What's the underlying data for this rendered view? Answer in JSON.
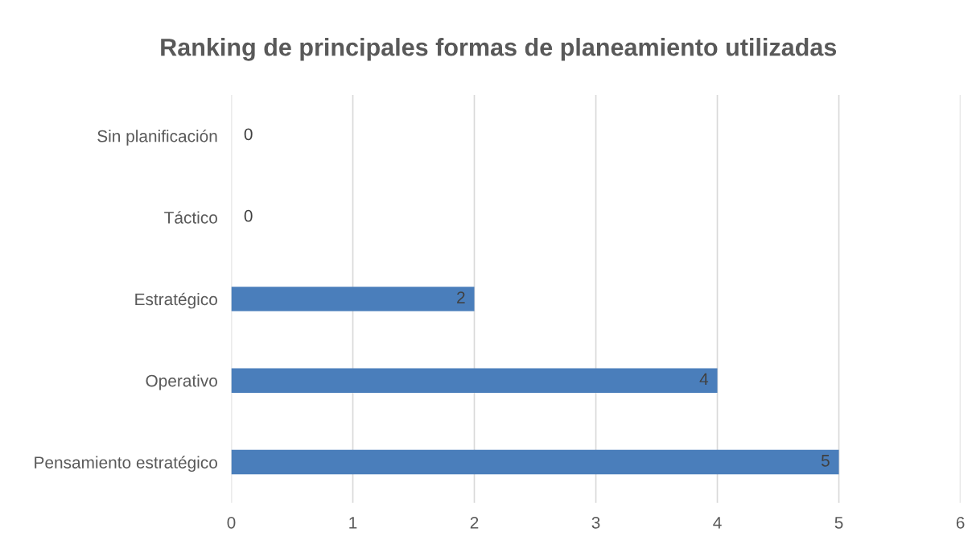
{
  "chart_data": {
    "type": "bar",
    "orientation": "horizontal",
    "title": "Ranking de principales formas de planeamiento utilizadas",
    "categories": [
      "Sin planificación",
      "Táctico",
      "Estratégico",
      "Operativo",
      "Pensamiento estratégico"
    ],
    "values": [
      0,
      0,
      2,
      4,
      5
    ],
    "color": "#4a7ebb",
    "xlim": [
      0,
      6
    ],
    "xticks": [
      0,
      1,
      2,
      3,
      4,
      5,
      6
    ],
    "grid": "x",
    "data_labels": true
  }
}
